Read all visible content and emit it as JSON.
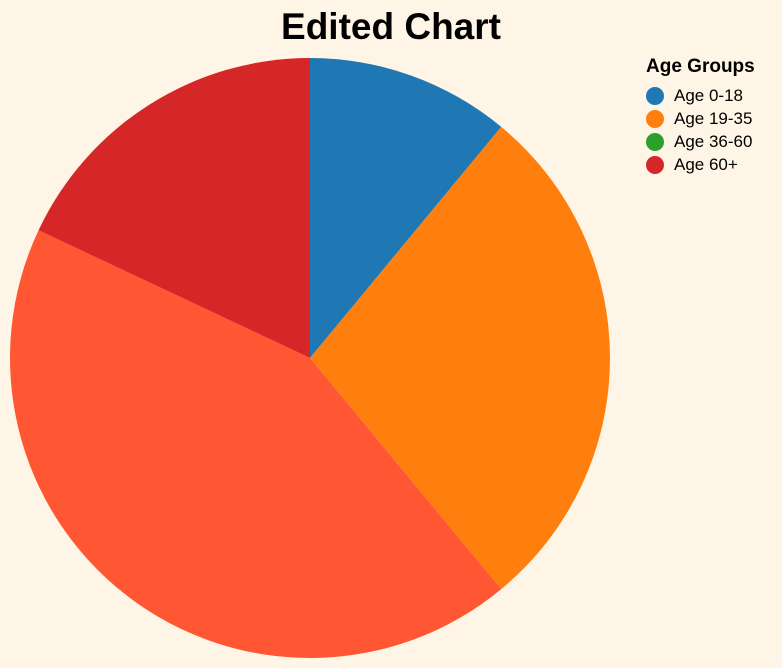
{
  "chart_data": {
    "type": "pie",
    "title": "Edited Chart",
    "legend_title": "Age Groups",
    "legend_position": "top-right",
    "categories": [
      "Age 0-18",
      "Age 19-35",
      "Age 36-60",
      "Age 60+"
    ],
    "values": [
      11,
      28,
      0,
      18
    ],
    "other_value": 43,
    "colors": {
      "Age 0-18": "#1f77b4",
      "Age 19-35": "#ff7f0e",
      "Age 36-60": "#2ca02c",
      "Age 60+": "#d62728",
      "other": "#ff5733"
    },
    "order": [
      "Age 0-18",
      "Age 19-35",
      "other",
      "Age 60+"
    ]
  }
}
